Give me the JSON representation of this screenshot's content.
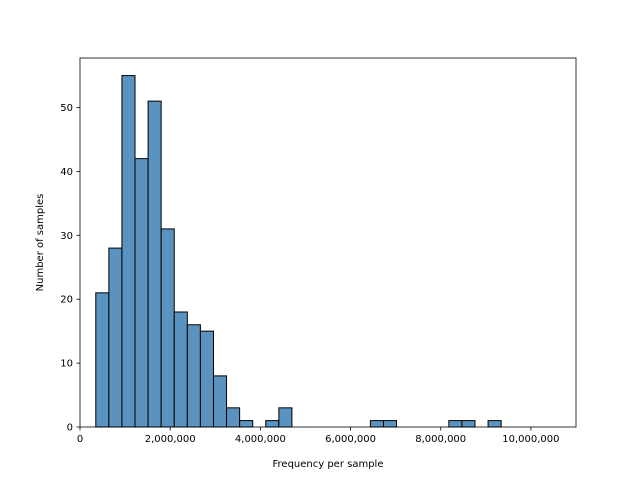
{
  "chart_data": {
    "type": "bar",
    "title": "",
    "xlabel": "Frequency per sample",
    "ylabel": "Number of samples",
    "xlim": [
      0,
      11000000
    ],
    "ylim": [
      0,
      57.75
    ],
    "bin_width": 290000,
    "bins_start": 350000,
    "counts": [
      21,
      28,
      55,
      42,
      51,
      31,
      18,
      16,
      15,
      8,
      3,
      1,
      0,
      1,
      3,
      0,
      0,
      0,
      0,
      0,
      0,
      1,
      1,
      0,
      0,
      0,
      0,
      1,
      1,
      0,
      1
    ],
    "x_ticks": [
      {
        "value": 0,
        "label": "0"
      },
      {
        "value": 2000000,
        "label": "2,000,000"
      },
      {
        "value": 4000000,
        "label": "4,000,000"
      },
      {
        "value": 6000000,
        "label": "6,000,000"
      },
      {
        "value": 8000000,
        "label": "8,000,000"
      },
      {
        "value": 10000000,
        "label": "10,000,000"
      }
    ],
    "y_ticks": [
      {
        "value": 0,
        "label": "0"
      },
      {
        "value": 10,
        "label": "10"
      },
      {
        "value": 20,
        "label": "20"
      },
      {
        "value": 30,
        "label": "30"
      },
      {
        "value": 40,
        "label": "40"
      },
      {
        "value": 50,
        "label": "50"
      }
    ],
    "grid": false,
    "bar_color": "#5a93c0",
    "edge_color": "#000000"
  }
}
